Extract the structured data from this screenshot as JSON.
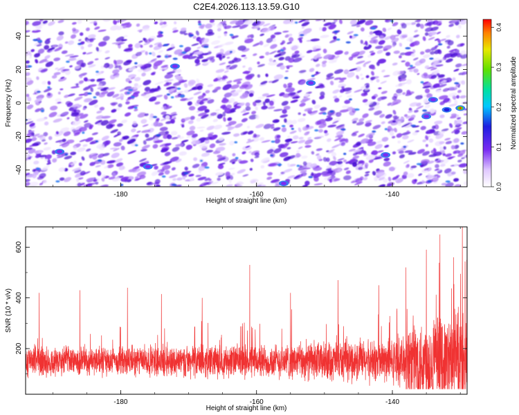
{
  "figure": {
    "title": "C2E4.2026.113.13.59.G10"
  },
  "chart_data": [
    {
      "type": "heatmap",
      "xlabel": "Height of straight line (km)",
      "ylabel": "Frequency (Hz)",
      "xlim": [
        -194,
        -129
      ],
      "ylim": [
        -50,
        50
      ],
      "xticks": [
        -180,
        -160,
        -140
      ],
      "yticks": [
        -40,
        -20,
        0,
        20,
        40
      ],
      "colorbar": {
        "label": "Normalized spectral amplitude",
        "range": [
          0,
          0.42
        ],
        "ticks": [
          0,
          0.1,
          0.2,
          0.3,
          0.4
        ],
        "tick_labels": [
          "0.0",
          "0.1",
          "0.2",
          "0.3",
          "0.4"
        ]
      },
      "hotspots": [
        {
          "x": -134,
          "y": 2,
          "value": 0.14
        },
        {
          "x": -132,
          "y": -4,
          "value": 0.16
        },
        {
          "x": -130,
          "y": -3,
          "value": 0.33
        },
        {
          "x": -135,
          "y": -8,
          "value": 0.11
        },
        {
          "x": -189,
          "y": -29,
          "value": 0.12
        },
        {
          "x": -172,
          "y": 22,
          "value": 0.12
        },
        {
          "x": -152,
          "y": 12,
          "value": 0.11
        },
        {
          "x": -141,
          "y": -31,
          "value": 0.11
        },
        {
          "x": -156,
          "y": -48,
          "value": 0.11
        },
        {
          "x": -176,
          "y": -38,
          "value": 0.1
        }
      ]
    },
    {
      "type": "line",
      "xlabel": "Height of straight line (km)",
      "ylabel": "SNR (10 * v/v)",
      "xlim": [
        -194,
        -129
      ],
      "ylim": [
        20,
        680
      ],
      "xticks": [
        -180,
        -160,
        -140
      ],
      "yticks": [
        200,
        400,
        600
      ],
      "series": [
        {
          "color": "#f03232",
          "baseline": 150,
          "sample_step_km": 0.02,
          "peaks": [
            {
              "x": -192,
              "y": 420
            },
            {
              "x": -186,
              "y": 430
            },
            {
              "x": -179,
              "y": 440
            },
            {
              "x": -174,
              "y": 415
            },
            {
              "x": -168,
              "y": 400
            },
            {
              "x": -161,
              "y": 530
            },
            {
              "x": -155,
              "y": 420
            },
            {
              "x": -148,
              "y": 470
            },
            {
              "x": -142,
              "y": 450
            },
            {
              "x": -138,
              "y": 520
            },
            {
              "x": -135,
              "y": 590
            },
            {
              "x": -133,
              "y": 650
            },
            {
              "x": -131,
              "y": 560
            },
            {
              "x": -129.7,
              "y": 680
            }
          ]
        }
      ]
    }
  ]
}
